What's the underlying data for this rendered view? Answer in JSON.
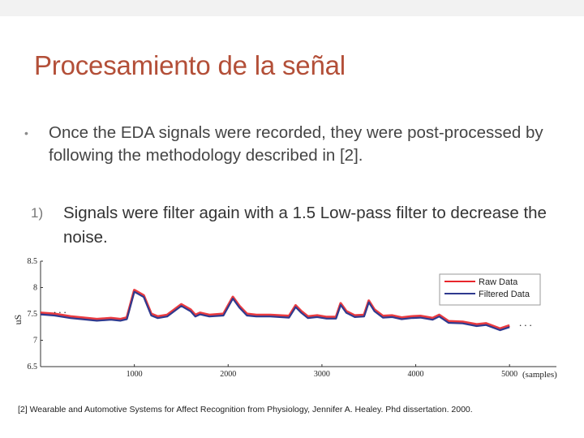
{
  "slide": {
    "title": "Procesamiento de la señal",
    "bullet": {
      "mark": "•",
      "text": "Once the EDA signals were recorded, they were  post-processed by following the methodology described in [2]."
    },
    "numbered": {
      "mark": "1)",
      "text": "Signals were filter again  with a 1.5 Low-pass filter to decrease the noise."
    },
    "reference": "[2] Wearable and Automotive Systems for Affect Recognition from Physiology, Jennifer A. Healey. Phd dissertation. 2000."
  },
  "chart_data": {
    "type": "line",
    "ylabel": "uS",
    "xlabel": "(samples)",
    "ylim": [
      6.5,
      8.5
    ],
    "xlim": [
      0,
      5500
    ],
    "yticks": [
      "8.5",
      "8",
      "7.5",
      "7",
      "6.5"
    ],
    "xticks": [
      "1000",
      "2000",
      "3000",
      "4000",
      "5000"
    ],
    "legend_position": "top-right",
    "ellipsis": "...",
    "series": [
      {
        "name": "Raw Data",
        "color": "#e8262b",
        "x": [
          0,
          150,
          320,
          600,
          750,
          850,
          920,
          1000,
          1100,
          1180,
          1250,
          1350,
          1500,
          1600,
          1650,
          1700,
          1800,
          1950,
          2050,
          2120,
          2200,
          2300,
          2450,
          2650,
          2720,
          2780,
          2850,
          2950,
          3050,
          3150,
          3200,
          3260,
          3350,
          3450,
          3500,
          3560,
          3650,
          3750,
          3850,
          3950,
          4050,
          4180,
          4250,
          4350,
          4500,
          4650,
          4750,
          4900,
          5000
        ],
        "y": [
          7.52,
          7.5,
          7.45,
          7.4,
          7.42,
          7.4,
          7.43,
          7.95,
          7.85,
          7.5,
          7.45,
          7.48,
          7.68,
          7.58,
          7.48,
          7.52,
          7.48,
          7.5,
          7.82,
          7.65,
          7.5,
          7.48,
          7.48,
          7.46,
          7.66,
          7.55,
          7.45,
          7.47,
          7.44,
          7.44,
          7.7,
          7.55,
          7.47,
          7.48,
          7.75,
          7.58,
          7.46,
          7.47,
          7.43,
          7.45,
          7.46,
          7.42,
          7.48,
          7.36,
          7.35,
          7.3,
          7.32,
          7.22,
          7.28
        ]
      },
      {
        "name": "Filtered Data",
        "color": "#2f3a8f",
        "x": [
          0,
          150,
          320,
          600,
          750,
          850,
          920,
          1000,
          1100,
          1180,
          1250,
          1350,
          1500,
          1600,
          1650,
          1700,
          1800,
          1950,
          2050,
          2120,
          2200,
          2300,
          2450,
          2650,
          2720,
          2780,
          2850,
          2950,
          3050,
          3150,
          3200,
          3260,
          3350,
          3450,
          3500,
          3560,
          3650,
          3750,
          3850,
          3950,
          4050,
          4180,
          4250,
          4350,
          4500,
          4650,
          4750,
          4900,
          5000
        ],
        "y": [
          7.49,
          7.47,
          7.42,
          7.37,
          7.39,
          7.37,
          7.4,
          7.92,
          7.82,
          7.47,
          7.42,
          7.45,
          7.65,
          7.55,
          7.45,
          7.49,
          7.45,
          7.47,
          7.79,
          7.62,
          7.47,
          7.45,
          7.45,
          7.43,
          7.63,
          7.52,
          7.42,
          7.44,
          7.41,
          7.41,
          7.67,
          7.52,
          7.44,
          7.45,
          7.72,
          7.55,
          7.43,
          7.44,
          7.4,
          7.42,
          7.43,
          7.39,
          7.45,
          7.33,
          7.32,
          7.27,
          7.29,
          7.19,
          7.25
        ]
      }
    ]
  }
}
